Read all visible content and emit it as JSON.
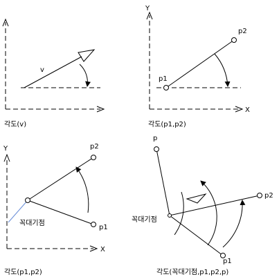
{
  "panels": [
    {
      "labels": [
        "v"
      ],
      "caption": "각도(v)"
    },
    {
      "labels": [
        "Y",
        "X",
        "p1",
        "p2"
      ],
      "caption": "각도(p1,p2)"
    },
    {
      "labels": [
        "Y",
        "X",
        "p2",
        "p1",
        "꼭대기점"
      ],
      "caption": "각도(p1,p2)"
    },
    {
      "labels": [
        "p",
        "p2",
        "p1",
        "꼭대기점"
      ],
      "caption": "각도(꼭대기점,p1,p2,p)"
    }
  ]
}
